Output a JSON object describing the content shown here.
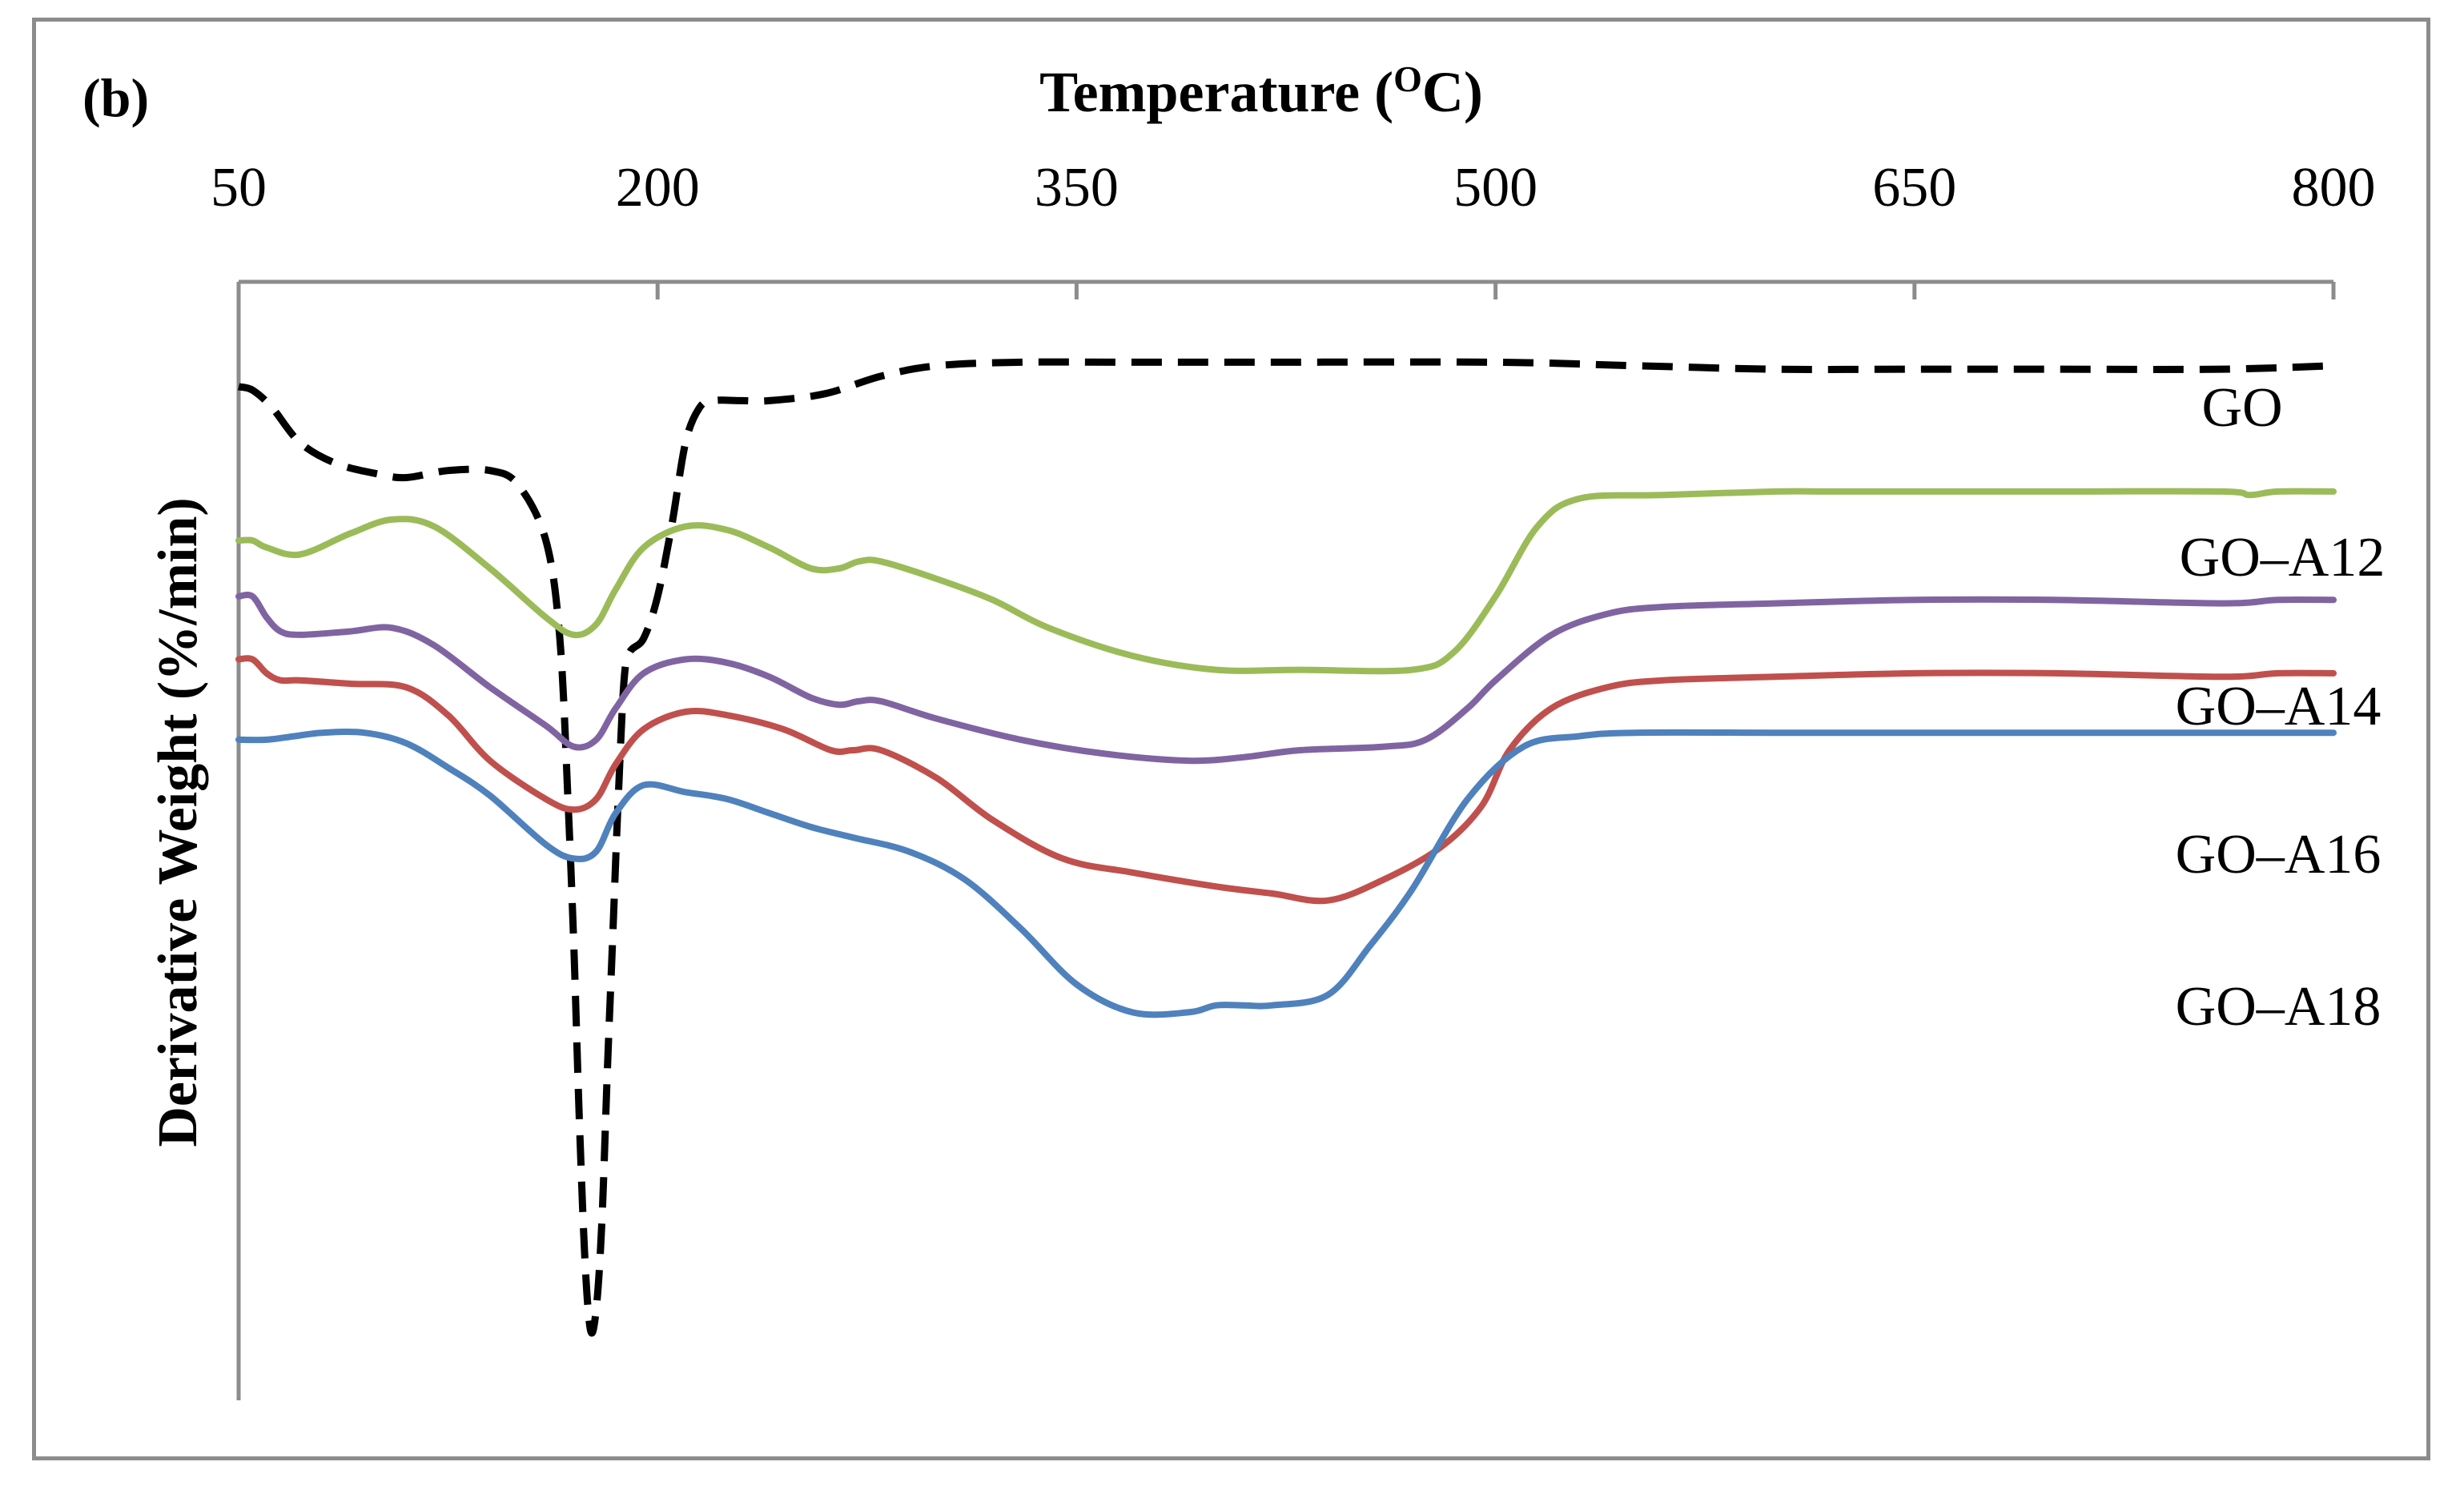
{
  "panel_label": "(b)",
  "chart_data": {
    "type": "line",
    "title": "",
    "xlabel": "Temperature (OC)",
    "xlabel_parts": {
      "main": "Temperature (",
      "sup": "O",
      "tail": "C)"
    },
    "ylabel": "Derivative Weight  (%/min)",
    "xlim": [
      50,
      800
    ],
    "xticks": [
      50,
      200,
      350,
      500,
      650,
      800
    ],
    "xtick_labels": [
      "50",
      "200",
      "350",
      "500",
      "650",
      "800"
    ],
    "x_axis_position": "top",
    "ylim": [
      -14.5,
      1.5
    ],
    "y_values_note": "relative units estimated from curve positions; original y-axis has no numeric ticks",
    "grid": false,
    "legend": "inline labels at right end of each curve",
    "series": [
      {
        "name": "GO",
        "label": "GO",
        "color": "#000000",
        "style": "dashed",
        "x": [
          50,
          55,
          62,
          72,
          85,
          100,
          110,
          125,
          140,
          150,
          160,
          165,
          168,
          170,
          172,
          174,
          176,
          178,
          180,
          182,
          184,
          186,
          188,
          190,
          195,
          200,
          205,
          210,
          215,
          220,
          230,
          240,
          260,
          280,
          300,
          330,
          370,
          420,
          500,
          550,
          600,
          650,
          700,
          760,
          800
        ],
        "y": [
          0,
          -0.05,
          -0.3,
          -0.8,
          -1.1,
          -1.25,
          -1.3,
          -1.2,
          -1.2,
          -1.4,
          -2.2,
          -3.6,
          -6.0,
          -8.0,
          -10.5,
          -12.5,
          -13.5,
          -13.2,
          -12.0,
          -9.8,
          -7.8,
          -5.8,
          -4.2,
          -3.8,
          -3.6,
          -3.0,
          -2.0,
          -0.8,
          -0.3,
          -0.2,
          -0.2,
          -0.2,
          -0.1,
          0.15,
          0.3,
          0.35,
          0.35,
          0.35,
          0.35,
          0.3,
          0.25,
          0.25,
          0.25,
          0.25,
          0.3
        ]
      },
      {
        "name": "GO–A12",
        "label": "GO–A12",
        "color": "#9bbb59",
        "style": "solid",
        "x": [
          50,
          55,
          60,
          72,
          90,
          105,
          120,
          140,
          160,
          170,
          178,
          185,
          195,
          210,
          225,
          240,
          255,
          265,
          272,
          280,
          300,
          320,
          340,
          370,
          400,
          430,
          470,
          485,
          500,
          515,
          530,
          560,
          600,
          620,
          650,
          700,
          760,
          770,
          780,
          800
        ],
        "y": [
          -2.2,
          -2.2,
          -2.3,
          -2.4,
          -2.1,
          -1.9,
          -2.0,
          -2.6,
          -3.3,
          -3.55,
          -3.4,
          -2.9,
          -2.3,
          -2.0,
          -2.05,
          -2.3,
          -2.6,
          -2.6,
          -2.5,
          -2.5,
          -2.75,
          -3.05,
          -3.45,
          -3.85,
          -4.05,
          -4.05,
          -4.05,
          -3.8,
          -3.0,
          -2.0,
          -1.6,
          -1.55,
          -1.5,
          -1.5,
          -1.5,
          -1.5,
          -1.5,
          -1.55,
          -1.5,
          -1.5
        ]
      },
      {
        "name": "GO–A14",
        "label": "GO–A14",
        "color": "#8064a2",
        "style": "solid",
        "x": [
          50,
          55,
          60,
          65,
          72,
          90,
          105,
          120,
          140,
          160,
          170,
          178,
          185,
          195,
          210,
          225,
          240,
          255,
          265,
          272,
          280,
          300,
          330,
          360,
          390,
          410,
          430,
          460,
          475,
          490,
          500,
          520,
          540,
          560,
          600,
          650,
          700,
          760,
          780,
          800
        ],
        "y": [
          -3.0,
          -3.0,
          -3.3,
          -3.5,
          -3.55,
          -3.5,
          -3.45,
          -3.7,
          -4.3,
          -4.85,
          -5.15,
          -5.05,
          -4.6,
          -4.1,
          -3.9,
          -3.95,
          -4.15,
          -4.45,
          -4.55,
          -4.5,
          -4.5,
          -4.75,
          -5.05,
          -5.25,
          -5.35,
          -5.3,
          -5.2,
          -5.15,
          -5.05,
          -4.6,
          -4.2,
          -3.55,
          -3.25,
          -3.15,
          -3.1,
          -3.05,
          -3.05,
          -3.1,
          -3.05,
          -3.05
        ]
      },
      {
        "name": "GO–A16",
        "label": "GO–A16",
        "color": "#c0504d",
        "style": "solid",
        "x": [
          50,
          55,
          60,
          65,
          72,
          90,
          110,
          125,
          140,
          160,
          170,
          178,
          185,
          195,
          210,
          225,
          245,
          262,
          270,
          280,
          300,
          320,
          345,
          370,
          400,
          420,
          440,
          460,
          480,
          495,
          505,
          520,
          540,
          560,
          600,
          650,
          700,
          760,
          780,
          800
        ],
        "y": [
          -3.9,
          -3.9,
          -4.1,
          -4.2,
          -4.2,
          -4.25,
          -4.3,
          -4.7,
          -5.35,
          -5.9,
          -6.05,
          -5.9,
          -5.4,
          -4.9,
          -4.65,
          -4.7,
          -4.9,
          -5.2,
          -5.2,
          -5.2,
          -5.6,
          -6.2,
          -6.75,
          -6.95,
          -7.15,
          -7.25,
          -7.35,
          -7.05,
          -6.6,
          -6.0,
          -5.2,
          -4.6,
          -4.3,
          -4.2,
          -4.15,
          -4.1,
          -4.1,
          -4.15,
          -4.1,
          -4.1
        ]
      },
      {
        "name": "GO–A18",
        "label": "GO–A18",
        "color": "#4f81bd",
        "style": "solid",
        "x": [
          50,
          60,
          70,
          80,
          95,
          110,
          125,
          140,
          160,
          170,
          178,
          185,
          195,
          210,
          225,
          240,
          255,
          270,
          290,
          310,
          330,
          350,
          370,
          390,
          400,
          410,
          420,
          440,
          455,
          470,
          490,
          510,
          530,
          550,
          600,
          650,
          700,
          760,
          780,
          800
        ],
        "y": [
          -5.05,
          -5.05,
          -5.0,
          -4.95,
          -4.95,
          -5.1,
          -5.45,
          -5.85,
          -6.55,
          -6.75,
          -6.65,
          -6.1,
          -5.7,
          -5.8,
          -5.9,
          -6.1,
          -6.3,
          -6.45,
          -6.65,
          -7.05,
          -7.75,
          -8.55,
          -8.95,
          -8.95,
          -8.85,
          -8.85,
          -8.85,
          -8.7,
          -8.0,
          -7.2,
          -5.9,
          -5.15,
          -5.0,
          -4.95,
          -4.95,
          -4.95,
          -4.95,
          -4.95,
          -4.95,
          -4.95
        ]
      }
    ]
  }
}
